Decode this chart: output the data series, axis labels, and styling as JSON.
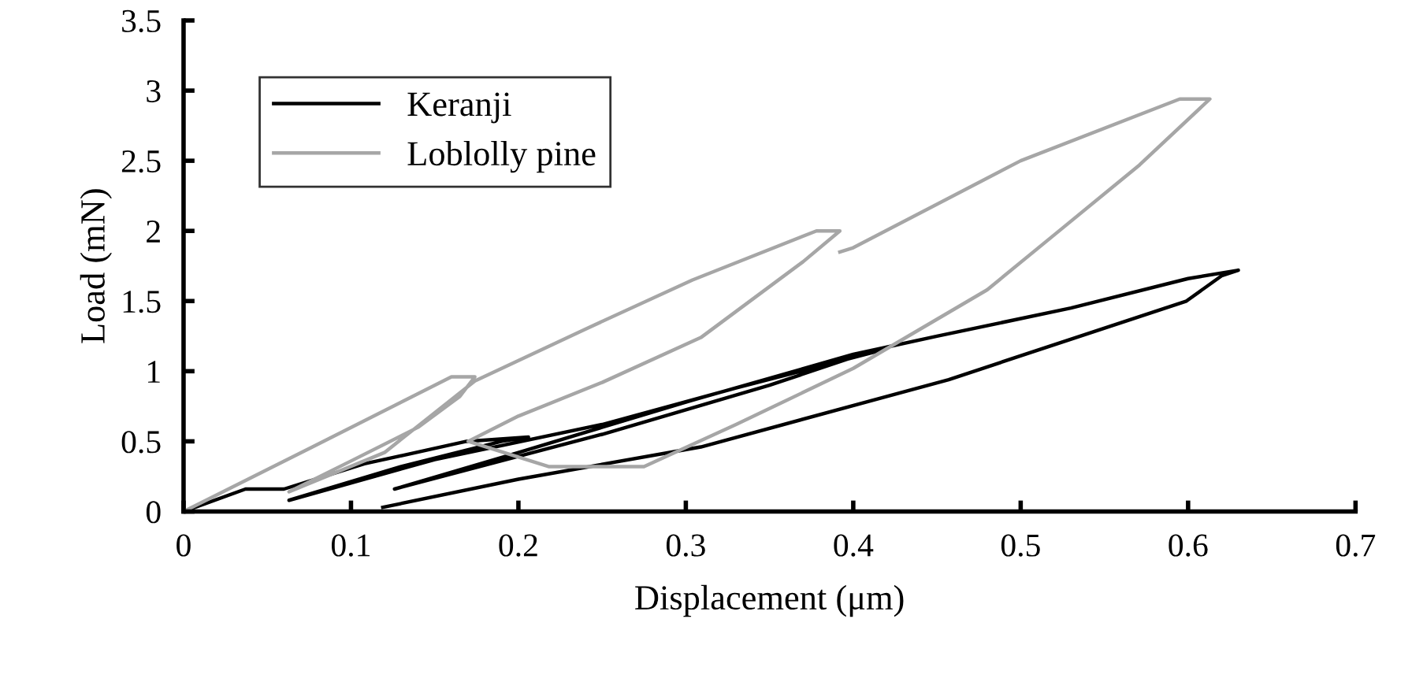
{
  "chart_data": {
    "type": "line",
    "xlabel": "Displacement (μm)",
    "ylabel": "Load (mN)",
    "xlim": [
      0,
      0.7
    ],
    "ylim": [
      0,
      3.5
    ],
    "xticks": [
      0,
      0.1,
      0.2,
      0.3,
      0.4,
      0.5,
      0.6,
      0.7
    ],
    "yticks": [
      0,
      0.5,
      1,
      1.5,
      2,
      2.5,
      3,
      3.5
    ],
    "grid": false,
    "legend": "top left",
    "marker": "none",
    "line_style": "solid",
    "series": [
      {
        "name": "Keranji",
        "color": "#000000",
        "x": [
          0,
          0.037,
          0.06,
          0.108,
          0.169,
          0.206,
          0.19,
          0.13,
          0.063,
          0.15,
          0.25,
          0.33,
          0.417,
          0.41,
          0.35,
          0.25,
          0.126,
          0.2,
          0.3,
          0.4,
          0.45,
          0.53,
          0.6,
          0.63,
          0.62,
          0.599,
          0.457,
          0.309,
          0.2,
          0.119
        ],
        "values": [
          0,
          0.16,
          0.16,
          0.34,
          0.5,
          0.53,
          0.5,
          0.32,
          0.08,
          0.37,
          0.62,
          0.88,
          1.15,
          1.14,
          0.9,
          0.55,
          0.16,
          0.42,
          0.78,
          1.12,
          1.25,
          1.45,
          1.66,
          1.72,
          1.68,
          1.5,
          0.94,
          0.46,
          0.23,
          0.03
        ]
      },
      {
        "name": "Loblolly pine",
        "color": "#a6a6a6",
        "x": [
          0,
          0.077,
          0.16,
          0.174,
          0.165,
          0.14,
          0.1,
          0.063,
          0.12,
          0.174,
          0.24,
          0.304,
          0.378,
          0.392,
          0.37,
          0.309,
          0.25,
          0.2,
          0.17,
          0.218,
          0.275,
          0.33,
          0.4,
          0.48,
          0.525,
          0.571,
          0.613,
          0.595,
          0.5,
          0.4,
          0.392
        ],
        "values": [
          0,
          0.46,
          0.96,
          0.96,
          0.82,
          0.6,
          0.36,
          0.14,
          0.42,
          0.93,
          1.3,
          1.65,
          2.0,
          2.0,
          1.78,
          1.24,
          0.92,
          0.68,
          0.5,
          0.32,
          0.32,
          0.62,
          1.02,
          1.58,
          2.02,
          2.47,
          2.94,
          2.94,
          2.5,
          1.88,
          1.85
        ]
      }
    ]
  }
}
